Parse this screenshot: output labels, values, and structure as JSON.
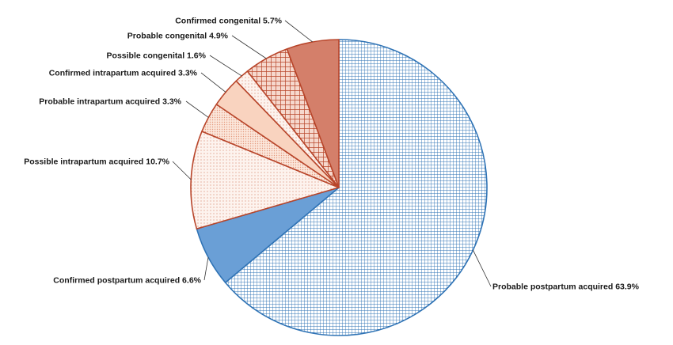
{
  "chart_data": {
    "type": "pie",
    "title": "",
    "start_angle_deg": 0,
    "direction": "clockwise",
    "slices": [
      {
        "label": "Probable postpartum acquired 63.9%",
        "value": 63.9,
        "fill": "#6a9fd6",
        "stroke": "#2f73b5",
        "pattern": "grid-dense"
      },
      {
        "label": "Confirmed postpartum acquired 6.6%",
        "value": 6.6,
        "fill": "#6a9fd6",
        "stroke": "#2f73b5",
        "pattern": "solid"
      },
      {
        "label": "Possible intrapartum acquired 10.7%",
        "value": 10.7,
        "fill": "#f4b89c",
        "stroke": "#b8452a",
        "pattern": "dots-sparse"
      },
      {
        "label": "Probable intrapartum acquired 3.3%",
        "value": 3.3,
        "fill": "#f4b89c",
        "stroke": "#b8452a",
        "pattern": "dots-dense"
      },
      {
        "label": "Confirmed intrapartum acquired 3.3%",
        "value": 3.3,
        "fill": "#f9d3bf",
        "stroke": "#b8452a",
        "pattern": "solid"
      },
      {
        "label": "Possible congenital 1.6%",
        "value": 1.6,
        "fill": "#c0634c",
        "stroke": "#b8452a",
        "pattern": "dots-sparse"
      },
      {
        "label": "Probable congenital 4.9%",
        "value": 4.9,
        "fill": "#c0634c",
        "stroke": "#b8452a",
        "pattern": "grid-coarse"
      },
      {
        "label": "Confirmed congenital 5.7%",
        "value": 5.7,
        "fill": "#d47f6a",
        "stroke": "#b8452a",
        "pattern": "solid"
      }
    ]
  }
}
